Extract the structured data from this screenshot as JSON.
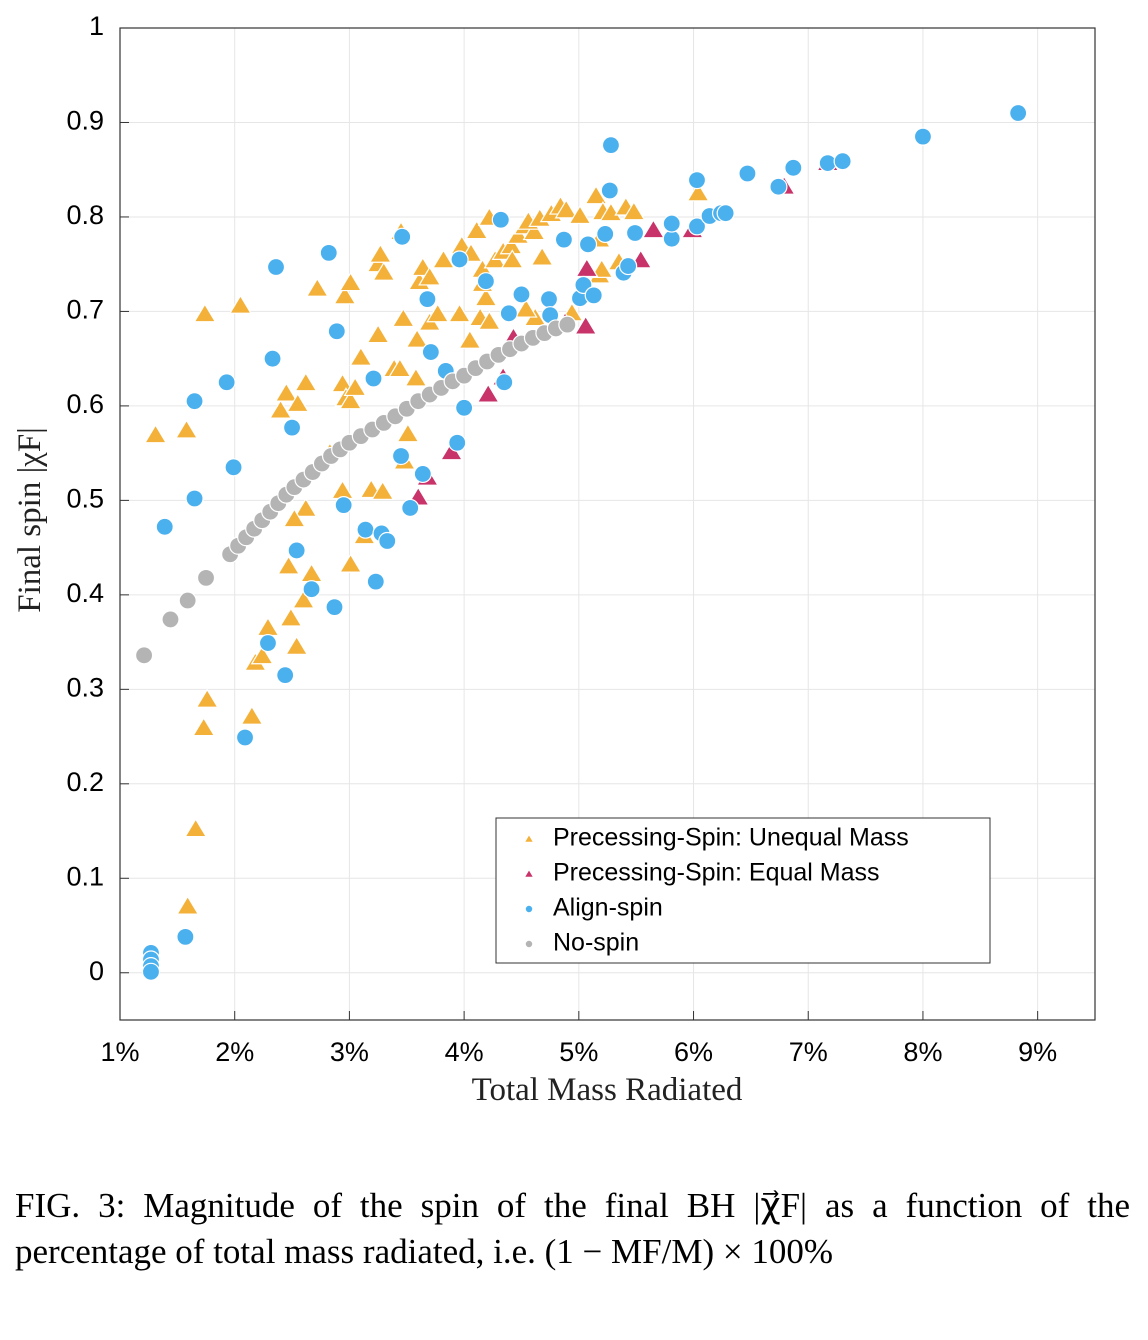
{
  "chart_data": {
    "type": "scatter",
    "x_label": "Total Mass Radiated",
    "y_label": "Final spin |χF|",
    "xlim": [
      1,
      9.5
    ],
    "ylim": [
      -0.05,
      1
    ],
    "xticks": [
      {
        "value": 1,
        "label": "1%"
      },
      {
        "value": 2,
        "label": "2%"
      },
      {
        "value": 3,
        "label": "3%"
      },
      {
        "value": 4,
        "label": "4%"
      },
      {
        "value": 5,
        "label": "5%"
      },
      {
        "value": 6,
        "label": "6%"
      },
      {
        "value": 7,
        "label": "7%"
      },
      {
        "value": 8,
        "label": "8%"
      },
      {
        "value": 9,
        "label": "9%"
      }
    ],
    "yticks": [
      0,
      0.1,
      0.2,
      0.3,
      0.4,
      0.5,
      0.6,
      0.7,
      0.8,
      0.9,
      1
    ],
    "grid": true,
    "legend_loc": "lower right",
    "series": [
      {
        "name": "Precessing-Spin: Unequal Mass",
        "color": "#f4b13a",
        "marker": "triangle",
        "x": [
          1.59,
          1.66,
          1.73,
          1.76,
          2.15,
          2.18,
          2.24,
          2.29,
          2.54,
          2.49,
          2.6,
          2.67,
          2.62,
          2.47,
          2.52,
          1.31,
          1.58,
          1.74,
          2.05,
          2.4,
          2.45,
          2.55,
          2.62,
          2.72,
          2.83,
          2.94,
          2.97,
          3.01,
          2.94,
          3.01,
          2.96,
          3.01,
          3.1,
          3.05,
          3.19,
          3.13,
          3.25,
          3.27,
          3.3,
          3.25,
          3.29,
          3.39,
          3.44,
          3.47,
          3.45,
          3.48,
          3.51,
          3.59,
          3.61,
          3.64,
          3.7,
          3.58,
          3.7,
          3.77,
          3.82,
          3.96,
          4.05,
          3.98,
          4.06,
          4.11,
          4.16,
          4.14,
          4.19,
          4.16,
          4.22,
          4.22,
          4.27,
          4.34,
          4.41,
          4.42,
          4.47,
          4.53,
          4.61,
          4.56,
          4.68,
          4.66,
          4.76,
          4.84,
          4.89,
          4.94,
          5.01,
          5.15,
          5.18,
          5.18,
          5.2,
          5.21,
          5.28,
          5.35,
          5.41,
          5.48,
          6.04,
          4.62,
          4.54
        ],
        "values": [
          0.07,
          0.152,
          0.259,
          0.289,
          0.271,
          0.328,
          0.335,
          0.365,
          0.345,
          0.375,
          0.394,
          0.422,
          0.491,
          0.43,
          0.48,
          0.569,
          0.574,
          0.697,
          0.706,
          0.595,
          0.613,
          0.602,
          0.624,
          0.724,
          0.55,
          0.623,
          0.608,
          0.605,
          0.51,
          0.432,
          0.716,
          0.73,
          0.651,
          0.619,
          0.511,
          0.462,
          0.75,
          0.76,
          0.741,
          0.675,
          0.509,
          0.639,
          0.639,
          0.692,
          0.784,
          0.541,
          0.57,
          0.67,
          0.731,
          0.746,
          0.736,
          0.629,
          0.688,
          0.697,
          0.754,
          0.697,
          0.669,
          0.769,
          0.761,
          0.785,
          0.744,
          0.693,
          0.714,
          0.729,
          0.689,
          0.799,
          0.754,
          0.763,
          0.769,
          0.754,
          0.78,
          0.79,
          0.784,
          0.795,
          0.757,
          0.798,
          0.803,
          0.811,
          0.807,
          0.698,
          0.801,
          0.822,
          0.776,
          0.738,
          0.744,
          0.805,
          0.804,
          0.752,
          0.81,
          0.805,
          0.825,
          0.693,
          0.702
        ]
      },
      {
        "name": "Precessing-Spin: Equal Mass",
        "color": "#c8336a",
        "marker": "triangle",
        "x": [
          3.89,
          4.21,
          4.34,
          3.68,
          3.6,
          4.43,
          5.07,
          5.06,
          5.54,
          5.65,
          5.99,
          6.79,
          7.17,
          4.88
        ],
        "values": [
          0.551,
          0.612,
          0.63,
          0.524,
          0.503,
          0.672,
          0.745,
          0.684,
          0.754,
          0.786,
          0.786,
          0.832,
          0.857,
          0.688
        ]
      },
      {
        "name": "Align-spin",
        "color": "#4ab0ee",
        "marker": "circle",
        "x": [
          1.27,
          1.27,
          1.27,
          1.27,
          1.57,
          1.39,
          1.65,
          1.65,
          1.93,
          1.99,
          2.09,
          2.36,
          2.33,
          2.5,
          2.54,
          2.44,
          2.29,
          2.67,
          2.82,
          2.89,
          2.95,
          2.87,
          3.21,
          3.14,
          3.28,
          3.33,
          3.23,
          3.46,
          3.45,
          3.68,
          3.71,
          3.84,
          3.64,
          3.53,
          3.96,
          4,
          3.94,
          4.19,
          4.32,
          4.39,
          4.5,
          4.35,
          4.74,
          4.75,
          4.87,
          5.01,
          5.04,
          5.13,
          5.08,
          5.28,
          5.27,
          5.23,
          5.39,
          5.43,
          5.49,
          5.81,
          5.81,
          6.03,
          6.03,
          6.14,
          6.24,
          6.28,
          6.47,
          6.74,
          6.87,
          7.17,
          7.3,
          8,
          8.83
        ],
        "values": [
          0.021,
          0.014,
          0.007,
          0.001,
          0.038,
          0.472,
          0.502,
          0.605,
          0.625,
          0.535,
          0.249,
          0.747,
          0.65,
          0.577,
          0.447,
          0.315,
          0.349,
          0.406,
          0.762,
          0.679,
          0.495,
          0.387,
          0.629,
          0.469,
          0.465,
          0.457,
          0.414,
          0.779,
          0.547,
          0.713,
          0.657,
          0.637,
          0.528,
          0.492,
          0.755,
          0.598,
          0.561,
          0.732,
          0.797,
          0.698,
          0.718,
          0.625,
          0.713,
          0.696,
          0.776,
          0.714,
          0.728,
          0.717,
          0.771,
          0.876,
          0.828,
          0.782,
          0.741,
          0.748,
          0.783,
          0.777,
          0.793,
          0.839,
          0.79,
          0.801,
          0.804,
          0.804,
          0.846,
          0.832,
          0.852,
          0.857,
          0.859,
          0.885,
          0.91
        ]
      },
      {
        "name": "No-spin",
        "color": "#b4b4b4",
        "marker": "circle",
        "x": [
          1.21,
          1.44,
          1.59,
          1.75,
          1.96,
          2.03,
          2.1,
          2.17,
          2.24,
          2.31,
          2.38,
          2.45,
          2.52,
          2.6,
          2.68,
          2.76,
          2.84,
          2.92,
          3,
          3.1,
          3.2,
          3.3,
          3.4,
          3.5,
          3.6,
          3.7,
          3.8,
          3.9,
          4,
          4.1,
          4.2,
          4.3,
          4.4,
          4.5,
          4.6,
          4.7,
          4.8,
          4.9
        ],
        "values": [
          0.336,
          0.374,
          0.394,
          0.418,
          0.443,
          0.452,
          0.461,
          0.47,
          0.479,
          0.488,
          0.497,
          0.506,
          0.514,
          0.522,
          0.53,
          0.539,
          0.547,
          0.554,
          0.561,
          0.568,
          0.575,
          0.582,
          0.589,
          0.597,
          0.605,
          0.612,
          0.619,
          0.626,
          0.632,
          0.64,
          0.647,
          0.654,
          0.66,
          0.666,
          0.672,
          0.677,
          0.682,
          0.686
        ]
      }
    ]
  },
  "caption": "FIG. 3: Magnitude of the spin of the final BH |χ⃗F| as a function of the percentage of total mass radiated, i.e. (1 − MF/M) × 100%"
}
